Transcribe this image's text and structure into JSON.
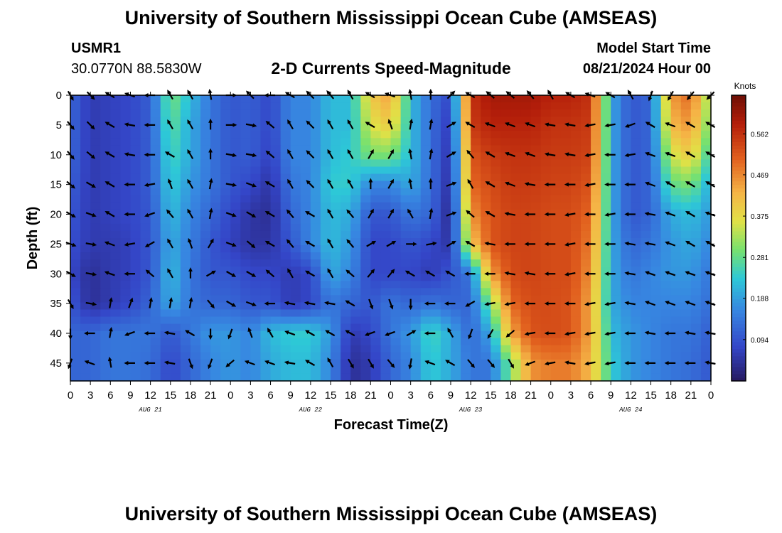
{
  "header": {
    "title": "University of Southern Mississippi Ocean Cube (AMSEAS)",
    "footer_title": "University of Southern Mississippi Ocean Cube (AMSEAS)",
    "station_id": "USMR1",
    "station_coords": "30.0770N  88.5830W",
    "plot_title": "2-D Currents Speed-Magnitude",
    "model_start_label": "Model Start Time",
    "model_start_value": "08/21/2024 Hour 00"
  },
  "chart_data": {
    "type": "heatmap",
    "title": "2-D Currents Speed-Magnitude",
    "xlabel": "Forecast Time(Z)",
    "ylabel": "Depth (ft)",
    "x_ticks": [
      "0",
      "3",
      "6",
      "9",
      "12",
      "15",
      "18",
      "21",
      "0",
      "3",
      "6",
      "9",
      "12",
      "15",
      "18",
      "21",
      "0",
      "3",
      "6",
      "9",
      "12",
      "15",
      "18",
      "21",
      "0",
      "3",
      "6",
      "9",
      "12",
      "15",
      "18",
      "21",
      "0"
    ],
    "x_range_hours": [
      0,
      96
    ],
    "day_labels": [
      {
        "label": "AUG 21",
        "hour": 12
      },
      {
        "label": "AUG 22",
        "hour": 36
      },
      {
        "label": "AUG 23",
        "hour": 60
      },
      {
        "label": "AUG 24",
        "hour": 84
      }
    ],
    "y_ticks": [
      0,
      5,
      10,
      15,
      20,
      25,
      30,
      35,
      40,
      45
    ],
    "y_range_ft": [
      0,
      48
    ],
    "colorbar": {
      "label": "Knots",
      "ticks": [
        "0.094",
        "0.188",
        "0.281",
        "0.375",
        "0.469",
        "0.562"
      ],
      "tick_values": [
        0.094,
        0.188,
        0.281,
        0.375,
        0.469,
        0.562
      ],
      "range": [
        0.0,
        0.65
      ]
    },
    "depths_ft": [
      0,
      5,
      10,
      15,
      20,
      25,
      30,
      35,
      40,
      45
    ],
    "times_h": [
      0,
      3,
      6,
      9,
      12,
      15,
      18,
      21,
      24,
      27,
      30,
      33,
      36,
      39,
      42,
      45,
      48,
      51,
      54,
      57,
      60,
      63,
      66,
      69,
      72,
      75,
      78,
      81,
      84,
      87,
      90,
      93,
      96
    ],
    "speed_knots": [
      [
        0.12,
        0.06,
        0.07,
        0.08,
        0.11,
        0.3,
        0.22,
        0.14,
        0.1,
        0.11,
        0.08,
        0.16,
        0.16,
        0.22,
        0.22,
        0.4,
        0.45,
        0.22,
        0.13,
        0.08,
        0.56,
        0.6,
        0.6,
        0.6,
        0.58,
        0.58,
        0.56,
        0.2,
        0.1,
        0.12,
        0.45,
        0.5,
        0.3
      ],
      [
        0.12,
        0.06,
        0.07,
        0.08,
        0.11,
        0.28,
        0.2,
        0.14,
        0.1,
        0.11,
        0.08,
        0.16,
        0.16,
        0.22,
        0.22,
        0.36,
        0.4,
        0.22,
        0.13,
        0.06,
        0.55,
        0.58,
        0.58,
        0.58,
        0.56,
        0.56,
        0.55,
        0.2,
        0.1,
        0.12,
        0.42,
        0.46,
        0.28
      ],
      [
        0.12,
        0.06,
        0.07,
        0.08,
        0.11,
        0.26,
        0.2,
        0.14,
        0.1,
        0.11,
        0.07,
        0.16,
        0.16,
        0.22,
        0.24,
        0.3,
        0.3,
        0.22,
        0.13,
        0.05,
        0.52,
        0.55,
        0.56,
        0.56,
        0.55,
        0.55,
        0.54,
        0.2,
        0.1,
        0.12,
        0.35,
        0.4,
        0.24
      ],
      [
        0.11,
        0.06,
        0.07,
        0.08,
        0.11,
        0.24,
        0.18,
        0.14,
        0.1,
        0.08,
        0.05,
        0.14,
        0.16,
        0.24,
        0.24,
        0.16,
        0.16,
        0.2,
        0.13,
        0.04,
        0.5,
        0.53,
        0.55,
        0.55,
        0.54,
        0.54,
        0.52,
        0.2,
        0.1,
        0.12,
        0.28,
        0.3,
        0.2
      ],
      [
        0.1,
        0.06,
        0.07,
        0.08,
        0.1,
        0.22,
        0.16,
        0.12,
        0.08,
        0.05,
        0.04,
        0.12,
        0.16,
        0.22,
        0.2,
        0.1,
        0.1,
        0.14,
        0.12,
        0.03,
        0.46,
        0.52,
        0.54,
        0.54,
        0.53,
        0.53,
        0.5,
        0.2,
        0.1,
        0.12,
        0.2,
        0.22,
        0.18
      ],
      [
        0.09,
        0.06,
        0.06,
        0.07,
        0.1,
        0.2,
        0.15,
        0.1,
        0.07,
        0.05,
        0.05,
        0.1,
        0.16,
        0.22,
        0.18,
        0.08,
        0.08,
        0.1,
        0.08,
        0.05,
        0.4,
        0.52,
        0.54,
        0.54,
        0.53,
        0.53,
        0.48,
        0.2,
        0.12,
        0.14,
        0.18,
        0.2,
        0.16
      ],
      [
        0.08,
        0.04,
        0.06,
        0.07,
        0.1,
        0.22,
        0.14,
        0.1,
        0.1,
        0.08,
        0.08,
        0.06,
        0.08,
        0.2,
        0.16,
        0.08,
        0.08,
        0.08,
        0.06,
        0.1,
        0.14,
        0.45,
        0.53,
        0.54,
        0.53,
        0.53,
        0.46,
        0.2,
        0.14,
        0.16,
        0.18,
        0.18,
        0.14
      ],
      [
        0.1,
        0.04,
        0.06,
        0.08,
        0.12,
        0.2,
        0.14,
        0.12,
        0.12,
        0.1,
        0.1,
        0.06,
        0.08,
        0.14,
        0.12,
        0.1,
        0.14,
        0.12,
        0.14,
        0.12,
        0.12,
        0.3,
        0.5,
        0.53,
        0.53,
        0.52,
        0.44,
        0.2,
        0.16,
        0.16,
        0.16,
        0.16,
        0.13
      ],
      [
        0.12,
        0.12,
        0.14,
        0.14,
        0.14,
        0.1,
        0.14,
        0.18,
        0.18,
        0.16,
        0.22,
        0.24,
        0.24,
        0.18,
        0.06,
        0.08,
        0.14,
        0.18,
        0.26,
        0.2,
        0.12,
        0.2,
        0.44,
        0.52,
        0.53,
        0.52,
        0.44,
        0.22,
        0.18,
        0.16,
        0.14,
        0.14,
        0.11
      ],
      [
        0.12,
        0.12,
        0.14,
        0.14,
        0.13,
        0.08,
        0.12,
        0.16,
        0.18,
        0.16,
        0.2,
        0.22,
        0.22,
        0.16,
        0.04,
        0.06,
        0.12,
        0.16,
        0.24,
        0.2,
        0.14,
        0.14,
        0.3,
        0.46,
        0.48,
        0.48,
        0.42,
        0.24,
        0.18,
        0.16,
        0.14,
        0.13,
        0.1
      ]
    ],
    "direction_deg": [
      [
        150,
        135,
        300,
        290,
        270,
        330,
        330,
        350,
        90,
        315,
        270,
        300,
        315,
        320,
        330,
        300,
        290,
        350,
        0,
        45,
        300,
        310,
        310,
        320,
        330,
        300,
        290,
        300,
        330,
        200,
        210,
        220,
        225
      ],
      [
        140,
        135,
        300,
        280,
        270,
        330,
        330,
        0,
        90,
        100,
        310,
        330,
        315,
        330,
        330,
        300,
        340,
        10,
        10,
        60,
        300,
        290,
        290,
        290,
        280,
        280,
        260,
        260,
        250,
        300,
        290,
        300,
        300
      ],
      [
        140,
        130,
        300,
        280,
        270,
        300,
        330,
        0,
        100,
        100,
        310,
        330,
        315,
        330,
        330,
        30,
        30,
        350,
        10,
        60,
        320,
        300,
        290,
        290,
        280,
        280,
        260,
        270,
        260,
        290,
        290,
        300,
        300
      ],
      [
        130,
        120,
        300,
        270,
        260,
        340,
        330,
        10,
        100,
        110,
        300,
        330,
        315,
        330,
        330,
        0,
        30,
        350,
        0,
        70,
        330,
        300,
        290,
        280,
        270,
        270,
        260,
        270,
        270,
        290,
        300,
        300,
        300
      ],
      [
        120,
        110,
        300,
        270,
        250,
        320,
        330,
        10,
        110,
        120,
        300,
        320,
        300,
        330,
        320,
        30,
        30,
        330,
        10,
        70,
        310,
        300,
        280,
        270,
        270,
        260,
        270,
        260,
        270,
        280,
        290,
        300,
        290
      ],
      [
        110,
        100,
        290,
        260,
        240,
        330,
        340,
        30,
        110,
        130,
        300,
        320,
        300,
        330,
        320,
        60,
        60,
        90,
        80,
        60,
        300,
        280,
        270,
        270,
        270,
        260,
        270,
        270,
        280,
        280,
        290,
        300,
        300
      ],
      [
        120,
        100,
        290,
        270,
        310,
        330,
        0,
        60,
        120,
        120,
        310,
        330,
        300,
        330,
        310,
        40,
        40,
        300,
        300,
        300,
        270,
        270,
        280,
        280,
        270,
        260,
        270,
        270,
        280,
        290,
        290,
        290,
        290
      ],
      [
        150,
        100,
        10,
        20,
        10,
        10,
        10,
        140,
        120,
        110,
        270,
        280,
        280,
        280,
        300,
        160,
        160,
        180,
        270,
        270,
        240,
        260,
        260,
        270,
        270,
        270,
        260,
        260,
        280,
        290,
        290,
        290,
        290
      ],
      [
        180,
        270,
        10,
        250,
        270,
        280,
        300,
        180,
        200,
        340,
        330,
        290,
        300,
        300,
        300,
        250,
        250,
        60,
        270,
        330,
        200,
        210,
        230,
        260,
        270,
        260,
        260,
        260,
        270,
        280,
        270,
        280,
        280
      ],
      [
        200,
        290,
        350,
        270,
        270,
        280,
        160,
        200,
        230,
        290,
        290,
        280,
        300,
        330,
        150,
        150,
        140,
        190,
        290,
        300,
        140,
        140,
        150,
        250,
        260,
        280,
        260,
        260,
        270,
        270,
        270,
        270,
        280
      ]
    ]
  }
}
